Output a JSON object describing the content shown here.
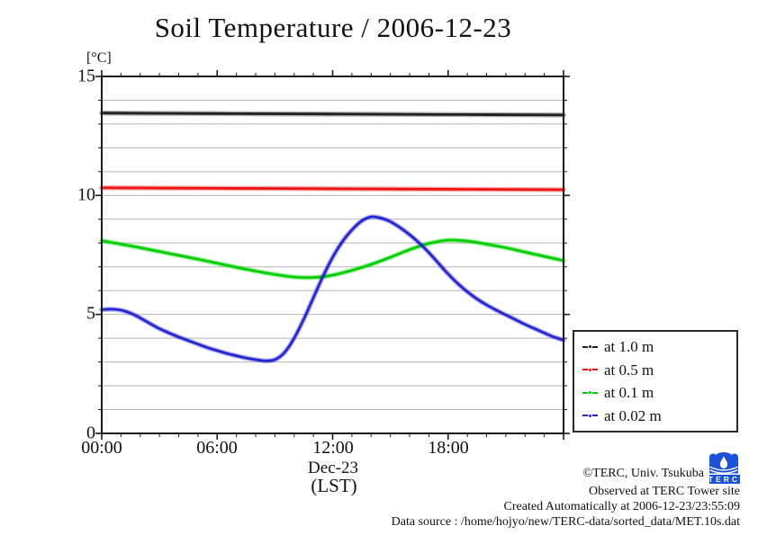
{
  "title": "Soil Temperature / 2006-12-23",
  "y_unit_label": "[°C]",
  "x_axis": {
    "tick_labels": [
      "00:00",
      "06:00",
      "12:00",
      "18:00"
    ],
    "date_label": "Dec-23",
    "timezone_label": "(LST)"
  },
  "y_axis": {
    "tick_labels": [
      "0",
      "5",
      "10",
      "15"
    ]
  },
  "footer": {
    "copyright": "©TERC, Univ. Tsukuba",
    "observed": "Observed at TERC Tower site",
    "created": "Created Automatically at 2006-12-23/23:55:09",
    "data_source": "Data source : /home/hojyo/new/TERC-data/sorted_data/MET.10s.dat",
    "logo_text": "TERC",
    "logo_color": "#1b52d8"
  },
  "colors": {
    "axis": "#1a1a1a",
    "grid": "#b5b5b5",
    "text": "#111111"
  },
  "chart_data": {
    "type": "line",
    "title": "Soil Temperature / 2006-12-23",
    "xlabel": "Dec-23 (LST)",
    "ylabel": "[°C]",
    "x_unit": "time of day, hours",
    "xlim_hours": [
      0,
      24
    ],
    "ylim": [
      0,
      15
    ],
    "x_major_ticks_hours": [
      0,
      6,
      12,
      18,
      24
    ],
    "x_minor_tick_interval_hours": 1,
    "y_major_ticks": [
      0,
      5,
      10,
      15
    ],
    "y_grid_interval": 1,
    "grid": "horizontal-only",
    "legend_position": "outside-right-bottom",
    "series": [
      {
        "name": "at 1.0 m",
        "color": "#1f1f1f",
        "x_interval_hours": 6,
        "values": [
          13.46,
          13.44,
          13.42,
          13.4,
          13.38
        ]
      },
      {
        "name": "at 0.5 m",
        "color": "#ee1212",
        "x_interval_hours": 6,
        "values": [
          10.32,
          10.3,
          10.28,
          10.26,
          10.24
        ]
      },
      {
        "name": "at 0.1 m",
        "color": "#00cf00",
        "x_interval_hours": 1,
        "values": [
          8.1,
          7.95,
          7.8,
          7.64,
          7.48,
          7.32,
          7.15,
          6.98,
          6.82,
          6.68,
          6.57,
          6.55,
          6.65,
          6.85,
          7.1,
          7.4,
          7.72,
          7.98,
          8.12,
          8.08,
          7.95,
          7.8,
          7.62,
          7.44,
          7.26
        ]
      },
      {
        "name": "at 0.02 m",
        "color": "#2525d2",
        "x_interval_hours": 0.5,
        "values": [
          5.2,
          5.22,
          5.18,
          5.05,
          4.85,
          4.62,
          4.4,
          4.22,
          4.05,
          3.9,
          3.75,
          3.6,
          3.48,
          3.36,
          3.26,
          3.17,
          3.1,
          3.05,
          3.1,
          3.4,
          4.0,
          4.8,
          5.7,
          6.6,
          7.4,
          8.05,
          8.55,
          8.92,
          9.1,
          9.05,
          8.9,
          8.65,
          8.35,
          8.0,
          7.6,
          7.15,
          6.7,
          6.3,
          5.95,
          5.65,
          5.4,
          5.18,
          4.98,
          4.78,
          4.58,
          4.4,
          4.22,
          4.05,
          3.92
        ]
      }
    ]
  }
}
